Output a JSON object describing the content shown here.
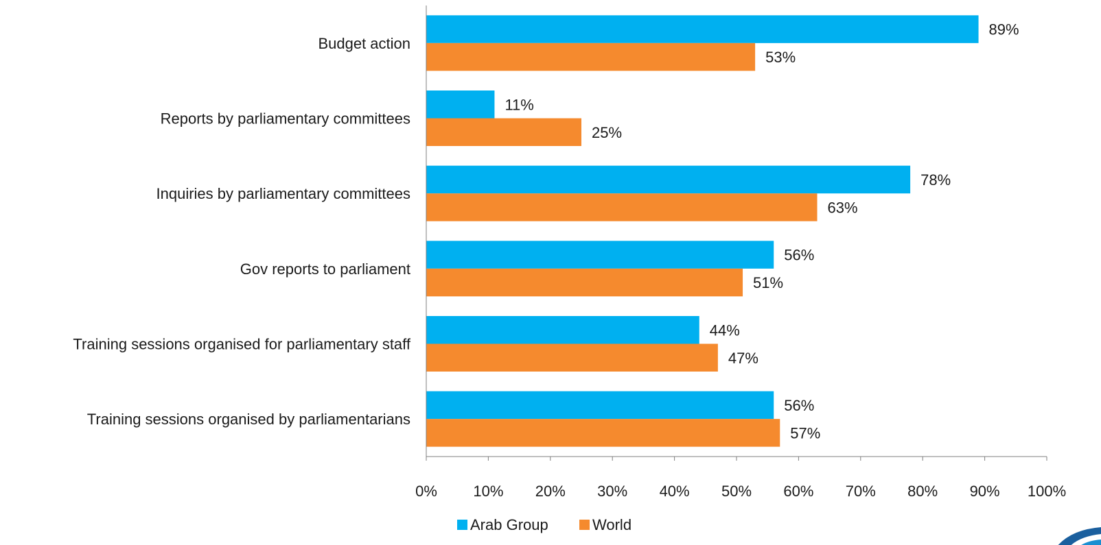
{
  "chart_data": {
    "type": "bar",
    "orientation": "horizontal",
    "categories": [
      "Budget action",
      "Reports by parliamentary committees",
      "Inquiries by parliamentary committees",
      "Gov reports to parliament",
      "Training sessions organised for parliamentary staff",
      "Training sessions organised by parliamentarians"
    ],
    "series": [
      {
        "name": "Arab Group",
        "color": "#00B0F0",
        "values": [
          89,
          11,
          78,
          56,
          44,
          56
        ],
        "labels": [
          "89%",
          "11%",
          "78%",
          "56%",
          "44%",
          "56%"
        ]
      },
      {
        "name": "World",
        "color": "#F58A2E",
        "values": [
          53,
          25,
          63,
          51,
          47,
          57
        ],
        "labels": [
          "53%",
          "25%",
          "63%",
          "51%",
          "47%",
          "57%"
        ]
      }
    ],
    "xlim": [
      0,
      100
    ],
    "x_ticks": [
      0,
      10,
      20,
      30,
      40,
      50,
      60,
      70,
      80,
      90,
      100
    ],
    "x_tick_labels": [
      "0%",
      "10%",
      "20%",
      "30%",
      "40%",
      "50%",
      "60%",
      "70%",
      "80%",
      "90%",
      "100%"
    ],
    "grid": false,
    "legend_position": "bottom",
    "title": "",
    "xlabel": "",
    "ylabel": ""
  }
}
